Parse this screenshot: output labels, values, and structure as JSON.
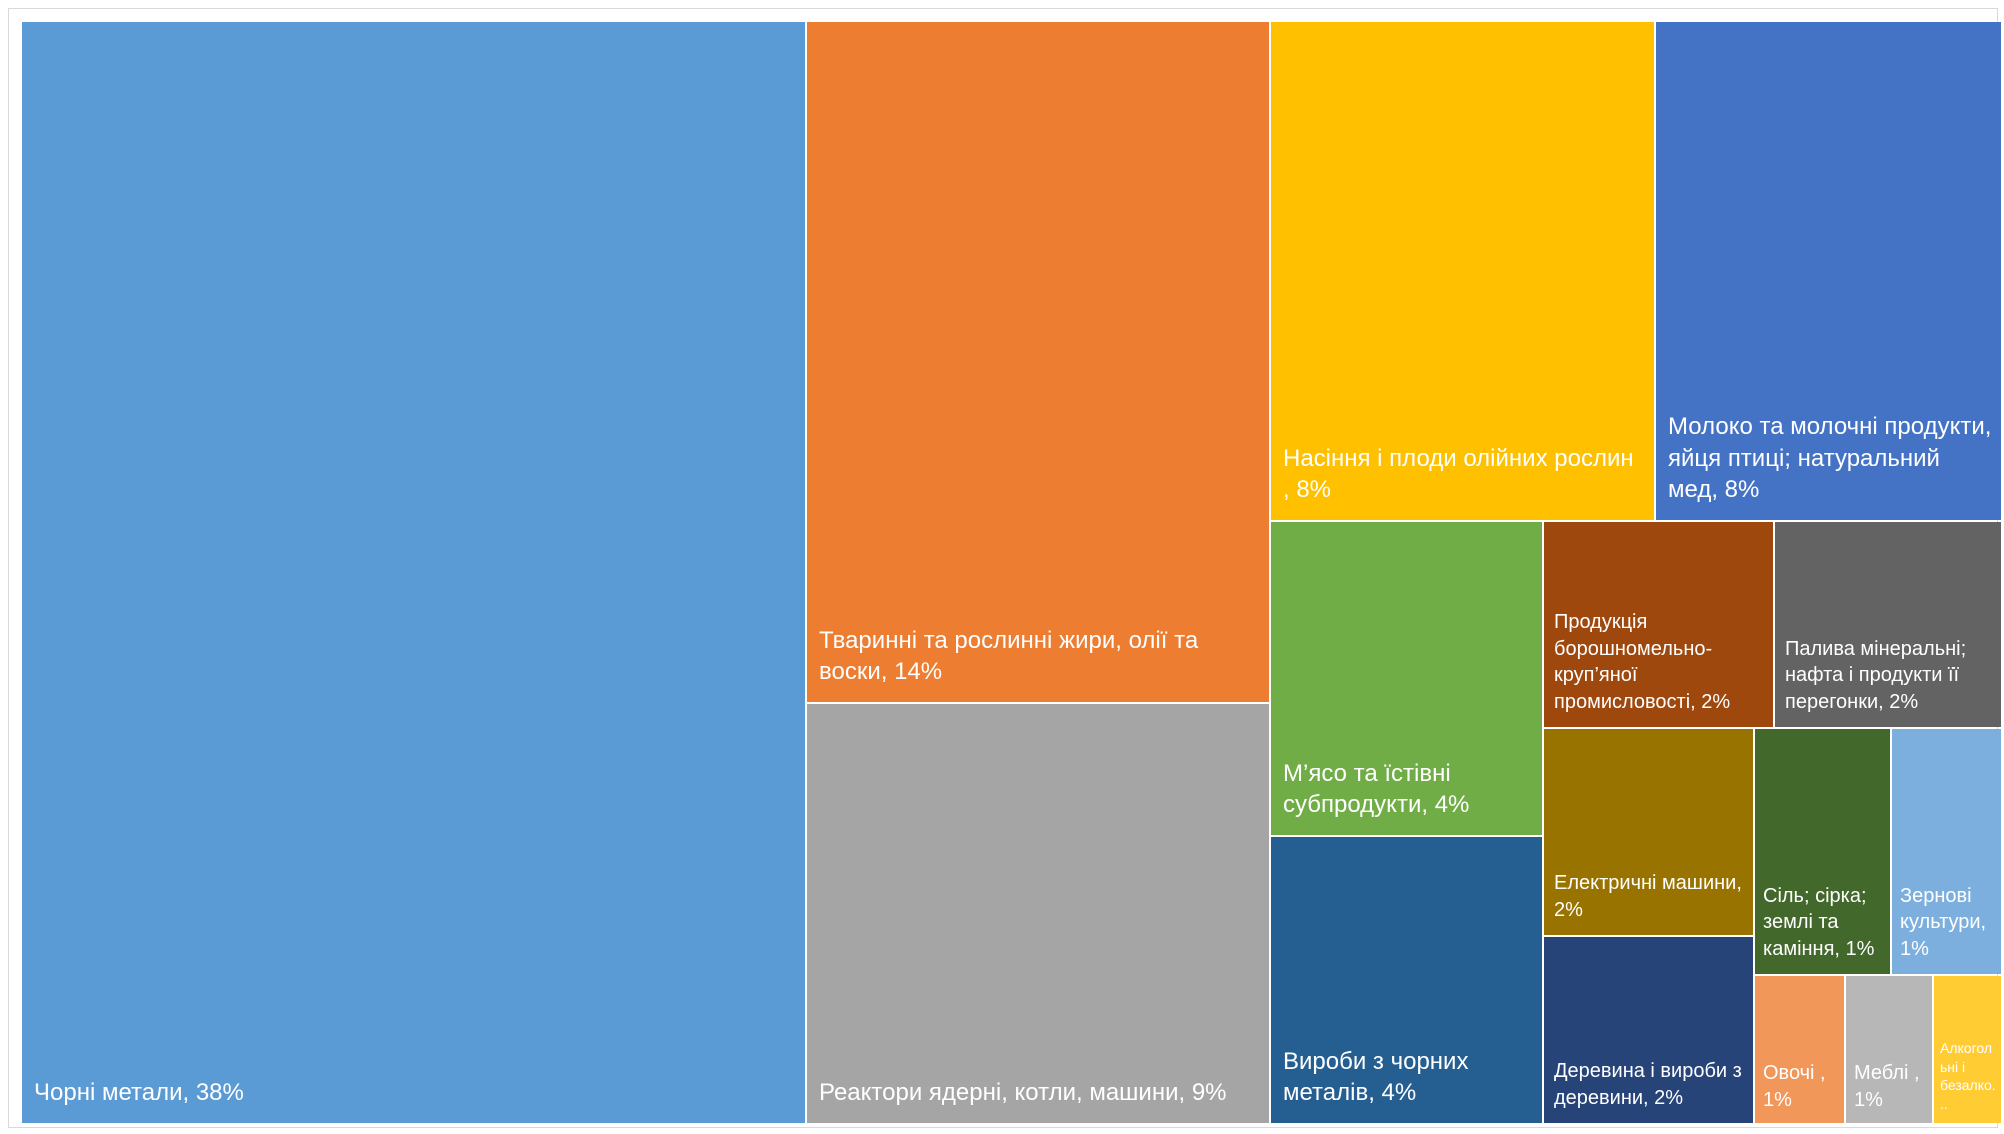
{
  "chart_data": {
    "type": "treemap",
    "title": "",
    "items": [
      {
        "label": "Чорні метали, 38%",
        "category": "Чорні метали",
        "value": 38,
        "color": "#5b9bd5"
      },
      {
        "label": "Тваринні та рослинні жири, олії та воски, 14%",
        "category": "Тваринні та рослинні жири, олії та воски",
        "value": 14,
        "color": "#ed7d31"
      },
      {
        "label": "Реактори ядерні, котли, машини, 9%",
        "category": "Реактори ядерні, котли, машини",
        "value": 9,
        "color": "#a5a5a5"
      },
      {
        "label": "Насіння і плоди олійних рослин , 8%",
        "category": "Насіння і плоди олійних рослин",
        "value": 8,
        "color": "#ffc000"
      },
      {
        "label": "Молоко та молочні продукти, яйця птиці; натуральний мед, 8%",
        "category": "Молоко та молочні продукти, яйця птиці; натуральний мед",
        "value": 8,
        "color": "#4472c4"
      },
      {
        "label": "М’ясо та їстівні субпродукти, 4%",
        "category": "М’ясо та їстівні субпродукти",
        "value": 4,
        "color": "#70ad47"
      },
      {
        "label": "Вироби з чорних металів, 4%",
        "category": "Вироби з чорних металів",
        "value": 4,
        "color": "#255e91"
      },
      {
        "label": "Продукція борошномельно-круп’яної промисловості, 2%",
        "category": "Продукція борошномельно-круп’яної промисловості",
        "value": 2,
        "color": "#9e480e"
      },
      {
        "label": "Палива мінеральні; нафта і продукти її перегонки, 2%",
        "category": "Палива мінеральні; нафта і продукти її перегонки",
        "value": 2,
        "color": "#636363"
      },
      {
        "label": "Електричні машини, 2%",
        "category": "Електричні машини",
        "value": 2,
        "color": "#997300"
      },
      {
        "label": "Деревина і вироби з деревини, 2%",
        "category": "Деревина і вироби з деревини",
        "value": 2,
        "color": "#264478"
      },
      {
        "label": "Сіль; сірка; землі та каміння, 1%",
        "category": "Сіль; сірка; землі та каміння",
        "value": 1,
        "color": "#43682b"
      },
      {
        "label": "Зернові культури, 1%",
        "category": "Зернові культури",
        "value": 1,
        "color": "#7cafdd"
      },
      {
        "label": "Овочі , 1%",
        "category": "Овочі",
        "value": 1,
        "color": "#f1975a"
      },
      {
        "label": "Меблі , 1%",
        "category": "Меблі",
        "value": 1,
        "color": "#b7b7b7"
      },
      {
        "label": "Алкогольні і безалко...",
        "category": "Алкогольні і безалко...",
        "value": 1,
        "color": "#ffcd33"
      }
    ]
  }
}
